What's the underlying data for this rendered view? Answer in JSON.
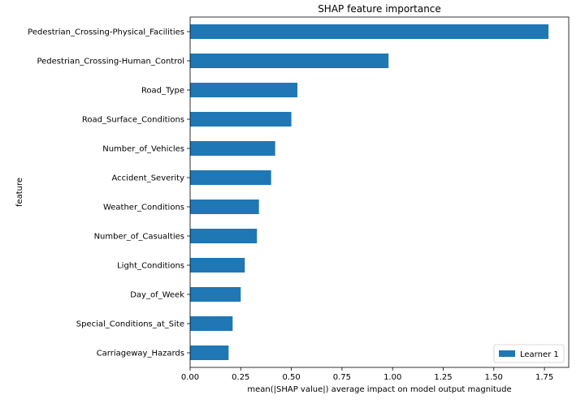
{
  "chart_data": {
    "type": "bar",
    "orientation": "horizontal",
    "title": "SHAP feature importance",
    "xlabel": "mean(|SHAP value|) average impact on model output magnitude",
    "ylabel": "feature",
    "xlim": [
      0,
      1.87
    ],
    "x_ticks": [
      0.0,
      0.25,
      0.5,
      0.75,
      1.0,
      1.25,
      1.5,
      1.75
    ],
    "x_tick_labels": [
      "0.00",
      "0.25",
      "0.50",
      "0.75",
      "1.00",
      "1.25",
      "1.50",
      "1.75"
    ],
    "grid": false,
    "legend": {
      "placement": "lower-right",
      "entries": [
        "Learner 1"
      ]
    },
    "categories": [
      "Pedestrian_Crossing-Physical_Facilities",
      "Pedestrian_Crossing-Human_Control",
      "Road_Type",
      "Road_Surface_Conditions",
      "Number_of_Vehicles",
      "Accident_Severity",
      "Weather_Conditions",
      "Number_of_Casualties",
      "Light_Conditions",
      "Day_of_Week",
      "Special_Conditions_at_Site",
      "Carriageway_Hazards"
    ],
    "series": [
      {
        "name": "Learner 1",
        "color": "#1f77b4",
        "values": [
          1.77,
          0.98,
          0.53,
          0.5,
          0.42,
          0.4,
          0.34,
          0.33,
          0.27,
          0.25,
          0.21,
          0.19
        ]
      }
    ]
  }
}
